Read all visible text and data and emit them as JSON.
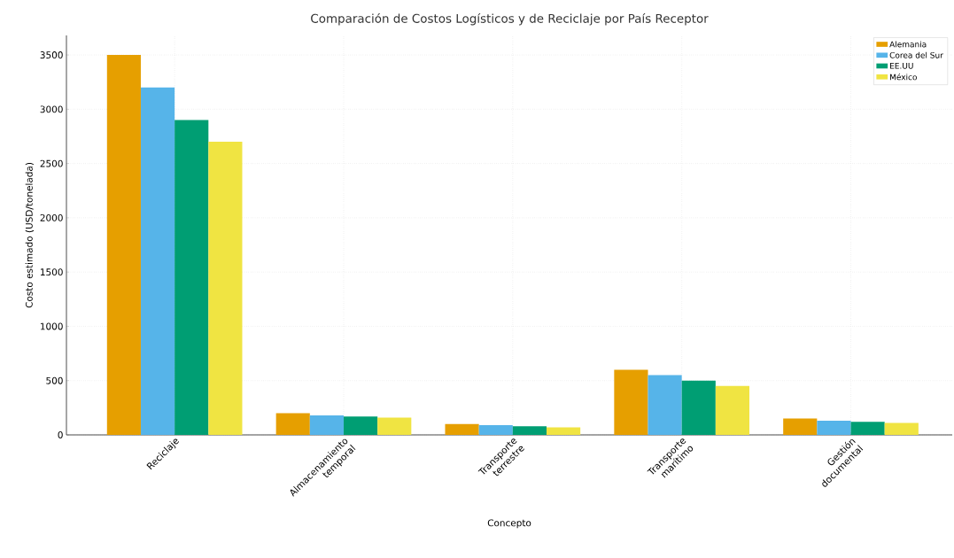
{
  "chart_data": {
    "type": "bar",
    "title": "Comparación de Costos Logísticos y de Reciclaje por País Receptor",
    "xlabel": "Concepto",
    "ylabel": "Costo estimado (USD/tonelada)",
    "categories": [
      "Reciclaje",
      "Almacenamiento temporal",
      "Transporte terrestre",
      "Transporte marítimo",
      "Gestión documental"
    ],
    "series": [
      {
        "name": "Alemania",
        "color": "#e69f00",
        "values": [
          3500,
          200,
          100,
          600,
          150
        ]
      },
      {
        "name": "Corea del Sur",
        "color": "#56b4e9",
        "values": [
          3200,
          180,
          90,
          550,
          130
        ]
      },
      {
        "name": "EE.UU",
        "color": "#009e73",
        "values": [
          2900,
          170,
          80,
          500,
          120
        ]
      },
      {
        "name": "México",
        "color": "#f0e442",
        "values": [
          2700,
          160,
          70,
          450,
          110
        ]
      }
    ],
    "ylim": [
      0,
      3680
    ],
    "yticks": [
      0,
      500,
      1000,
      1500,
      2000,
      2500,
      3000,
      3500
    ],
    "grid": true,
    "legend": "top right"
  }
}
